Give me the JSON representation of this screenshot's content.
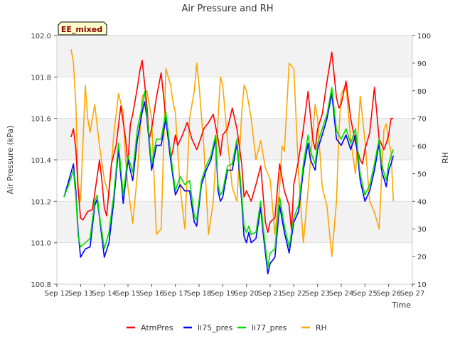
{
  "chart_data": {
    "type": "line",
    "title": "Air Pressure and RH",
    "badge": "EE_mixed",
    "xlabel": "Time",
    "ylabel_left": "Air Pressure (kPa)",
    "ylabel_right": "RH",
    "x_tick_labels": [
      "Sep 12",
      "Sep 13",
      "Sep 14",
      "Sep 15",
      "Sep 16",
      "Sep 17",
      "Sep 18",
      "Sep 19",
      "Sep 20",
      "Sep 21",
      "Sep 22",
      "Sep 23",
      "Sep 24",
      "Sep 25",
      "Sep 26",
      "Sep 27"
    ],
    "xlim": [
      12,
      27
    ],
    "ylim_left": [
      100.8,
      102.0
    ],
    "ylim_right": [
      10,
      100
    ],
    "yticks_left": [
      "100.8",
      "101.0",
      "101.2",
      "101.4",
      "101.6",
      "101.8",
      "102.0"
    ],
    "yticks_right": [
      "10",
      "20",
      "30",
      "40",
      "50",
      "60",
      "70",
      "80",
      "90",
      "100"
    ],
    "grid": true,
    "legend_position": "bottom",
    "series": [
      {
        "name": "AtmPres",
        "color": "#ff0000",
        "axis": "left",
        "x": [
          12.6,
          12.7,
          12.8,
          12.9,
          13.0,
          13.1,
          13.3,
          13.5,
          13.7,
          13.8,
          13.9,
          14.0,
          14.1,
          14.3,
          14.5,
          14.7,
          14.9,
          15.0,
          15.1,
          15.2,
          15.4,
          15.5,
          15.6,
          15.8,
          15.9,
          16.0,
          16.2,
          16.4,
          16.6,
          16.8,
          16.9,
          17.0,
          17.1,
          17.3,
          17.5,
          17.7,
          17.9,
          18.0,
          18.2,
          18.4,
          18.6,
          18.8,
          18.9,
          19.0,
          19.2,
          19.4,
          19.6,
          19.8,
          19.9,
          20.0,
          20.2,
          20.4,
          20.6,
          20.8,
          20.9,
          21.0,
          21.2,
          21.4,
          21.6,
          21.8,
          21.9,
          22.0,
          22.2,
          22.4,
          22.6,
          22.8,
          22.9,
          23.0,
          23.2,
          23.4,
          23.6,
          23.8,
          23.9,
          24.0,
          24.2,
          24.4,
          24.6,
          24.8,
          24.9,
          25.0,
          25.2,
          25.4,
          25.6,
          25.8,
          25.9,
          26.0,
          26.1,
          26.2
        ],
        "y": [
          101.51,
          101.55,
          101.45,
          101.25,
          101.12,
          101.11,
          101.15,
          101.16,
          101.32,
          101.4,
          101.3,
          101.17,
          101.13,
          101.38,
          101.47,
          101.66,
          101.5,
          101.38,
          101.57,
          101.62,
          101.75,
          101.83,
          101.88,
          101.66,
          101.5,
          101.55,
          101.7,
          101.82,
          101.6,
          101.4,
          101.45,
          101.52,
          101.47,
          101.52,
          101.58,
          101.5,
          101.45,
          101.48,
          101.55,
          101.58,
          101.62,
          101.5,
          101.42,
          101.52,
          101.55,
          101.65,
          101.55,
          101.38,
          101.22,
          101.25,
          101.2,
          101.28,
          101.37,
          101.1,
          101.05,
          101.1,
          101.12,
          101.38,
          101.25,
          101.18,
          101.06,
          101.28,
          101.4,
          101.55,
          101.73,
          101.5,
          101.45,
          101.55,
          101.62,
          101.78,
          101.92,
          101.7,
          101.65,
          101.67,
          101.78,
          101.6,
          101.48,
          101.4,
          101.38,
          101.45,
          101.53,
          101.75,
          101.5,
          101.45,
          101.48,
          101.52,
          101.6,
          101.6
        ]
      },
      {
        "name": "li75_pres",
        "color": "#0000ff",
        "axis": "left",
        "x": [
          12.3,
          12.5,
          12.7,
          12.8,
          12.9,
          13.0,
          13.2,
          13.4,
          13.6,
          13.7,
          13.8,
          14.0,
          14.2,
          14.4,
          14.6,
          14.8,
          15.0,
          15.2,
          15.4,
          15.6,
          15.7,
          15.8,
          16.0,
          16.2,
          16.4,
          16.6,
          16.8,
          17.0,
          17.2,
          17.4,
          17.6,
          17.8,
          17.9,
          18.1,
          18.3,
          18.5,
          18.7,
          18.8,
          18.9,
          19.0,
          19.2,
          19.4,
          19.6,
          19.8,
          19.9,
          20.0,
          20.1,
          20.2,
          20.4,
          20.6,
          20.7,
          20.9,
          21.0,
          21.2,
          21.4,
          21.6,
          21.8,
          22.0,
          22.2,
          22.4,
          22.6,
          22.7,
          22.9,
          23.0,
          23.2,
          23.4,
          23.6,
          23.8,
          24.0,
          24.2,
          24.4,
          24.6,
          24.8,
          25.0,
          25.2,
          25.4,
          25.6,
          25.7,
          25.9,
          26.0,
          26.1,
          26.2
        ],
        "y": [
          101.22,
          101.3,
          101.38,
          101.25,
          101.05,
          100.93,
          100.97,
          100.98,
          101.18,
          101.21,
          101.12,
          100.93,
          101.0,
          101.2,
          101.45,
          101.19,
          101.4,
          101.3,
          101.5,
          101.63,
          101.68,
          101.6,
          101.35,
          101.47,
          101.47,
          101.6,
          101.4,
          101.23,
          101.28,
          101.25,
          101.25,
          101.1,
          101.08,
          101.28,
          101.35,
          101.4,
          101.5,
          101.25,
          101.2,
          101.22,
          101.35,
          101.35,
          101.48,
          101.2,
          101.03,
          101.0,
          101.05,
          101.0,
          101.02,
          101.17,
          101.05,
          100.85,
          100.9,
          100.93,
          101.18,
          101.05,
          100.95,
          101.1,
          101.15,
          101.35,
          101.48,
          101.4,
          101.35,
          101.45,
          101.52,
          101.6,
          101.72,
          101.5,
          101.47,
          101.52,
          101.45,
          101.52,
          101.3,
          101.2,
          101.25,
          101.35,
          101.48,
          101.35,
          101.27,
          101.35,
          101.38,
          101.42
        ]
      },
      {
        "name": "li77_pres",
        "color": "#00dd00",
        "axis": "left",
        "x": [
          12.3,
          12.5,
          12.7,
          12.8,
          12.9,
          13.0,
          13.2,
          13.4,
          13.6,
          13.7,
          13.8,
          14.0,
          14.2,
          14.4,
          14.6,
          14.8,
          15.0,
          15.2,
          15.4,
          15.6,
          15.7,
          15.8,
          16.0,
          16.2,
          16.4,
          16.6,
          16.8,
          17.0,
          17.2,
          17.4,
          17.6,
          17.8,
          17.9,
          18.1,
          18.3,
          18.5,
          18.7,
          18.8,
          18.9,
          19.0,
          19.2,
          19.4,
          19.6,
          19.8,
          19.9,
          20.0,
          20.1,
          20.2,
          20.4,
          20.6,
          20.7,
          20.9,
          21.0,
          21.2,
          21.4,
          21.6,
          21.8,
          22.0,
          22.2,
          22.4,
          22.6,
          22.7,
          22.9,
          23.0,
          23.2,
          23.4,
          23.6,
          23.8,
          24.0,
          24.2,
          24.4,
          24.6,
          24.8,
          25.0,
          25.2,
          25.4,
          25.6,
          25.7,
          25.9,
          26.0,
          26.1,
          26.2
        ],
        "y": [
          101.22,
          101.28,
          101.35,
          101.22,
          101.03,
          100.98,
          101.0,
          101.02,
          101.2,
          101.23,
          101.13,
          100.97,
          101.05,
          101.23,
          101.48,
          101.23,
          101.42,
          101.34,
          101.55,
          101.66,
          101.73,
          101.62,
          101.38,
          101.5,
          101.5,
          101.63,
          101.43,
          101.25,
          101.32,
          101.28,
          101.3,
          101.13,
          101.11,
          101.3,
          101.37,
          101.42,
          101.52,
          101.28,
          101.23,
          101.25,
          101.37,
          101.38,
          101.5,
          101.23,
          101.08,
          101.05,
          101.08,
          101.04,
          101.05,
          101.2,
          101.08,
          100.88,
          100.95,
          100.97,
          101.22,
          101.08,
          100.98,
          101.12,
          101.18,
          101.38,
          101.52,
          101.44,
          101.38,
          101.48,
          101.55,
          101.62,
          101.75,
          101.54,
          101.5,
          101.55,
          101.48,
          101.55,
          101.33,
          101.23,
          101.28,
          101.38,
          101.5,
          101.38,
          101.3,
          101.38,
          101.42,
          101.45
        ]
      },
      {
        "name": "RH",
        "color": "#ffa500",
        "axis": "right",
        "x": [
          12.6,
          12.7,
          12.8,
          12.9,
          13.0,
          13.2,
          13.3,
          13.4,
          13.6,
          13.8,
          14.0,
          14.2,
          14.4,
          14.6,
          14.8,
          14.9,
          15.0,
          15.2,
          15.4,
          15.6,
          15.8,
          15.9,
          16.0,
          16.2,
          16.4,
          16.6,
          16.8,
          16.9,
          17.0,
          17.2,
          17.4,
          17.6,
          17.8,
          17.9,
          18.0,
          18.2,
          18.4,
          18.6,
          18.8,
          18.9,
          19.0,
          19.2,
          19.4,
          19.6,
          19.8,
          19.9,
          20.0,
          20.2,
          20.4,
          20.6,
          20.8,
          21.0,
          21.2,
          21.4,
          21.5,
          21.6,
          21.8,
          22.0,
          22.2,
          22.4,
          22.6,
          22.8,
          22.9,
          23.0,
          23.2,
          23.4,
          23.6,
          23.8,
          23.9,
          24.0,
          24.2,
          24.4,
          24.6,
          24.8,
          25.0,
          25.2,
          25.4,
          25.6,
          25.8,
          25.9,
          26.0,
          26.1,
          26.2
        ],
        "y": [
          95,
          90,
          75,
          45,
          40,
          82,
          70,
          65,
          75,
          60,
          48,
          42,
          64,
          79,
          72,
          55,
          45,
          32,
          50,
          78,
          80,
          75,
          70,
          28,
          30,
          88,
          82,
          76,
          72,
          45,
          30,
          70,
          80,
          90,
          82,
          60,
          28,
          40,
          70,
          85,
          82,
          62,
          45,
          40,
          72,
          82,
          80,
          70,
          55,
          62,
          52,
          48,
          28,
          45,
          60,
          58,
          90,
          88,
          50,
          25,
          44,
          65,
          75,
          70,
          45,
          38,
          20,
          40,
          65,
          79,
          82,
          62,
          50,
          78,
          62,
          40,
          36,
          30,
          66,
          68,
          62,
          58,
          40
        ]
      }
    ]
  }
}
